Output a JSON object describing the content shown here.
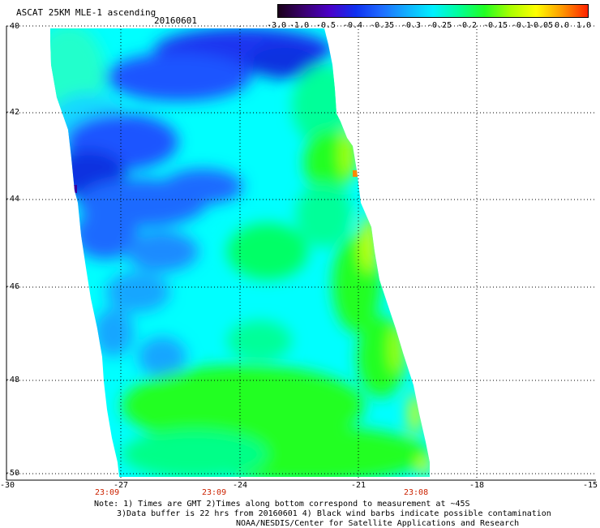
{
  "header": {
    "title": "ASCAT 25KM MLE-1 ascending",
    "date": "20160601"
  },
  "colorbar": {
    "labels": [
      "-3.0",
      "-1.0",
      "-0.5",
      "-0.4",
      "-0.35",
      "-0.3",
      "-0.25",
      "-0.2",
      "-0.15",
      "-0.1",
      "-0.05",
      "0.0",
      "1.0"
    ],
    "colors": [
      "#1a001a",
      "#3a0070",
      "#4a00c8",
      "#1030f0",
      "#1f6bff",
      "#12b0ff",
      "#00f0ff",
      "#00ff99",
      "#22ff22",
      "#aaff00",
      "#ffff00",
      "#ff9900",
      "#ff2200"
    ]
  },
  "axes": {
    "y_labels": [
      "-40",
      "-42",
      "-44",
      "-46",
      "-48",
      "-50"
    ],
    "x_labels": [
      "-30",
      "-27",
      "-24",
      "-21",
      "-18",
      "-15"
    ]
  },
  "times": [
    "23:09",
    "23:09",
    "23:08"
  ],
  "notes": [
    "Note: 1) Times are GMT 2)Times along bottom correspond to measurement at ~45S",
    "3)Data buffer is 22 hrs from 20160601 4) Black wind barbs indicate possible contamination",
    "NOAA/NESDIS/Center for Satellite Applications and Research"
  ]
}
